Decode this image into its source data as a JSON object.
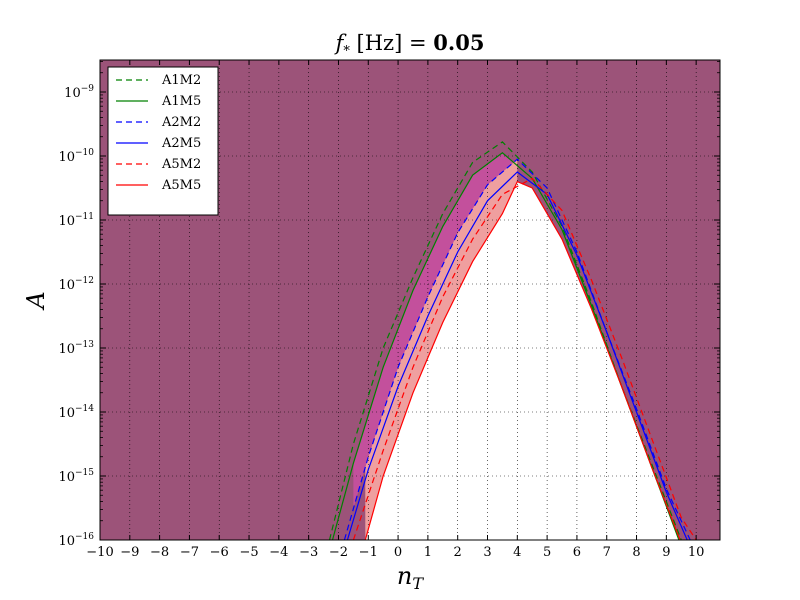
{
  "chart_data": {
    "type": "line",
    "title_parts": {
      "symbol": "f",
      "subscript": "*",
      "unit": "[Hz]",
      "equals": "=",
      "value": "0.05"
    },
    "xlabel_parts": {
      "symbol": "n",
      "subscript": "T"
    },
    "ylabel": "A",
    "xlim": [
      -10,
      10.8
    ],
    "ylim_log10": [
      -16,
      -8.5
    ],
    "y_scale": "log",
    "x_ticks": [
      -10,
      -9,
      -8,
      -7,
      -6,
      -5,
      -4,
      -3,
      -2,
      -1,
      0,
      1,
      2,
      3,
      4,
      5,
      6,
      7,
      8,
      9,
      10
    ],
    "y_tick_exponents": [
      -16,
      -15,
      -14,
      -13,
      -12,
      -11,
      -10,
      -9
    ],
    "y_tick_base": "10",
    "grid": true,
    "legend_location": "upper-left",
    "fill_color": "#9c5379",
    "band_colors": {
      "a2m2_a5m5": "#ef9f9f",
      "a1m5_a2m2": "#c3509c"
    },
    "series": [
      {
        "name": "A1M2",
        "color": "#008000",
        "dash": true,
        "x": [
          -2.3,
          -1.5,
          -0.5,
          0.5,
          1.5,
          2.5,
          3.5,
          4.5,
          5.5,
          6.5,
          7.5,
          8.5,
          9.5
        ],
        "log10_y": [
          -16.0,
          -14.5,
          -13.0,
          -11.9,
          -10.9,
          -10.1,
          -9.78,
          -10.25,
          -11.1,
          -12.3,
          -13.6,
          -14.8,
          -16.0
        ]
      },
      {
        "name": "A1M5",
        "color": "#008000",
        "dash": false,
        "x": [
          -2.2,
          -1.5,
          -0.5,
          0.5,
          1.5,
          2.5,
          3.5,
          4.5,
          5.5,
          6.5,
          7.5,
          8.5,
          9.5
        ],
        "log10_y": [
          -16.0,
          -14.8,
          -13.3,
          -12.1,
          -11.1,
          -10.3,
          -9.95,
          -10.35,
          -11.15,
          -12.35,
          -13.6,
          -14.85,
          -16.1
        ]
      },
      {
        "name": "A2M2",
        "color": "#0000ff",
        "dash": true,
        "x": [
          -1.8,
          -1.0,
          0.0,
          1.0,
          2.0,
          3.0,
          4.0,
          5.0,
          6.0,
          7.0,
          8.0,
          9.0,
          9.8
        ],
        "log10_y": [
          -16.0,
          -14.7,
          -13.3,
          -12.2,
          -11.2,
          -10.45,
          -10.05,
          -10.5,
          -11.5,
          -12.75,
          -13.95,
          -15.2,
          -16.0
        ]
      },
      {
        "name": "A2M5",
        "color": "#0000ff",
        "dash": false,
        "x": [
          -1.7,
          -1.0,
          0.0,
          1.0,
          2.0,
          3.0,
          4.0,
          5.0,
          6.0,
          7.0,
          8.0,
          9.0,
          9.7
        ],
        "log10_y": [
          -16.0,
          -14.9,
          -13.6,
          -12.5,
          -11.5,
          -10.7,
          -10.25,
          -10.6,
          -11.55,
          -12.75,
          -14.0,
          -15.25,
          -16.0
        ]
      },
      {
        "name": "A5M2",
        "color": "#ff0000",
        "dash": true,
        "x": [
          -1.5,
          -0.5,
          0.5,
          1.5,
          2.5,
          3.5,
          4.5,
          5.5,
          6.5,
          7.5,
          8.5,
          9.5,
          10.0
        ],
        "log10_y": [
          -16.0,
          -14.6,
          -13.3,
          -12.2,
          -11.3,
          -10.6,
          -10.35,
          -10.85,
          -11.95,
          -13.15,
          -14.4,
          -15.65,
          -16.0
        ]
      },
      {
        "name": "A5M5",
        "color": "#ff0000",
        "dash": false,
        "x": [
          -1.1,
          -0.5,
          0.5,
          1.5,
          2.5,
          3.5,
          4.0,
          4.5,
          5.5,
          6.5,
          7.5,
          8.5,
          9.5,
          9.9
        ],
        "log10_y": [
          -16.0,
          -15.0,
          -13.7,
          -12.6,
          -11.65,
          -10.9,
          -10.4,
          -10.5,
          -11.3,
          -12.4,
          -13.6,
          -14.85,
          -16.05,
          -16.0
        ]
      }
    ]
  }
}
